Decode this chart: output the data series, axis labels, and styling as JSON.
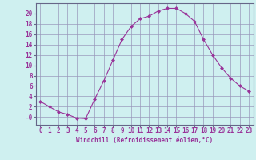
{
  "x": [
    0,
    1,
    2,
    3,
    4,
    5,
    6,
    7,
    8,
    9,
    10,
    11,
    12,
    13,
    14,
    15,
    16,
    17,
    18,
    19,
    20,
    21,
    22,
    23
  ],
  "y": [
    3,
    2,
    1,
    0.5,
    -0.2,
    -0.3,
    3.5,
    7,
    11,
    15,
    17.5,
    19,
    19.5,
    20.5,
    21,
    21,
    20,
    18.5,
    15,
    12,
    9.5,
    7.5,
    6,
    5
  ],
  "line_color": "#993399",
  "marker": "D",
  "marker_size": 2,
  "bg_color": "#cff0f0",
  "grid_color": "#9999bb",
  "xlabel": "Windchill (Refroidissement éolien,°C)",
  "xlabel_color": "#993399",
  "tick_color": "#993399",
  "ylim": [
    -1.5,
    22
  ],
  "xlim": [
    -0.5,
    23.5
  ],
  "yticks": [
    0,
    2,
    4,
    6,
    8,
    10,
    12,
    14,
    16,
    18,
    20
  ],
  "ytick_labels": [
    "-0",
    "2",
    "4",
    "6",
    "8",
    "10",
    "12",
    "14",
    "16",
    "18",
    "20"
  ]
}
